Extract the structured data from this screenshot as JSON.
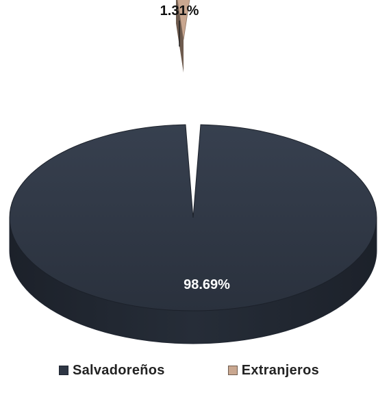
{
  "chart_data": {
    "type": "pie",
    "style": "3d-exploded",
    "series": [
      {
        "name": "Salvadoreños",
        "value": 98.69,
        "label": "98.69%",
        "color": "#2e3644",
        "side_color": "#1f2530"
      },
      {
        "name": "Extranjeros",
        "value": 1.31,
        "label": "1.31%",
        "color": "#c9a790",
        "side_color": "#6e5b4e"
      }
    ],
    "legend_position": "bottom",
    "title": ""
  }
}
